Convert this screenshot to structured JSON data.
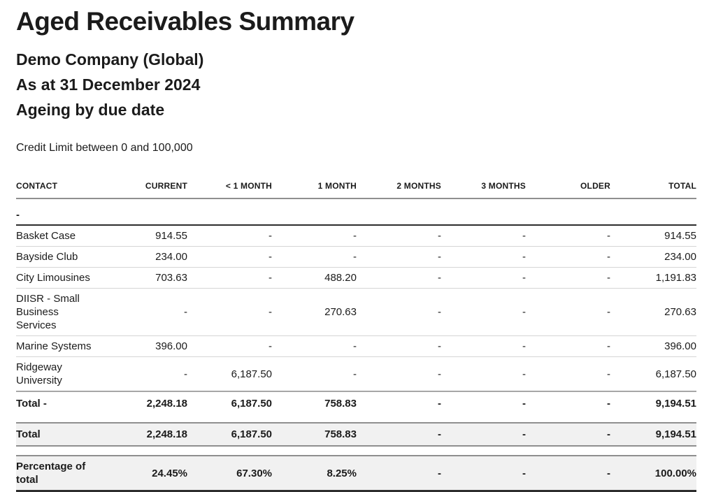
{
  "report": {
    "title": "Aged Receivables Summary",
    "company": "Demo Company (Global)",
    "date_line": "As at 31 December 2024",
    "ageing_line": "Ageing by due date",
    "filter_note": "Credit Limit between 0 and 100,000"
  },
  "table": {
    "columns": [
      "CONTACT",
      "CURRENT",
      "< 1 MONTH",
      "1 MONTH",
      "2 MONTHS",
      "3 MONTHS",
      "OLDER",
      "TOTAL"
    ],
    "group_label": "-",
    "rows": [
      {
        "contact": "Basket Case",
        "values": [
          "914.55",
          "-",
          "-",
          "-",
          "-",
          "-",
          "914.55"
        ]
      },
      {
        "contact": "Bayside Club",
        "values": [
          "234.00",
          "-",
          "-",
          "-",
          "-",
          "-",
          "234.00"
        ]
      },
      {
        "contact": "City Limousines",
        "values": [
          "703.63",
          "-",
          "488.20",
          "-",
          "-",
          "-",
          "1,191.83"
        ]
      },
      {
        "contact": "DIISR - Small Business Services",
        "values": [
          "-",
          "-",
          "270.63",
          "-",
          "-",
          "-",
          "270.63"
        ]
      },
      {
        "contact": "Marine Systems",
        "values": [
          "396.00",
          "-",
          "-",
          "-",
          "-",
          "-",
          "396.00"
        ]
      },
      {
        "contact": "Ridgeway University",
        "values": [
          "-",
          "6,187.50",
          "-",
          "-",
          "-",
          "-",
          "6,187.50"
        ]
      }
    ],
    "group_total": {
      "label": "Total -",
      "values": [
        "2,248.18",
        "6,187.50",
        "758.83",
        "-",
        "-",
        "-",
        "9,194.51"
      ]
    },
    "grand_total": {
      "label": "Total",
      "values": [
        "2,248.18",
        "6,187.50",
        "758.83",
        "-",
        "-",
        "-",
        "9,194.51"
      ]
    },
    "percentage_row": {
      "label": "Percentage of total",
      "values": [
        "24.45%",
        "67.30%",
        "8.25%",
        "-",
        "-",
        "-",
        "100.00%"
      ]
    }
  },
  "colors": {
    "text": "#1b1b1b",
    "row_divider": "#d5d5d5",
    "header_rule": "#8f8f8f",
    "group_rule": "#2d2d2d",
    "summary_bg": "#f1f1f1",
    "summary_border": "#8f8f8f",
    "final_rule": "#2d2d2d"
  }
}
